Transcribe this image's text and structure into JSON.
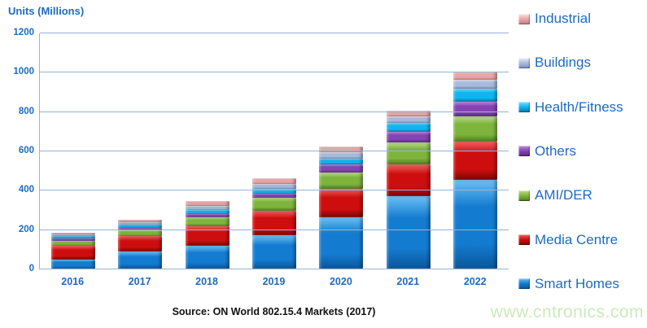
{
  "page": {
    "title": "Units (Millions)",
    "source_note": "Source: ON World 802.15.4 Markets (2017)",
    "watermark": "www.cntronics.com"
  },
  "colors": {
    "axis_text": "#1E6BC0",
    "grid_line": "#95B3D7",
    "legend_text": "#1E6BC0",
    "source_text": "#111111",
    "watermark_text": "#CCE9BC"
  },
  "chart_data": {
    "type": "bar",
    "stacked": true,
    "title": "Units (Millions)",
    "ylabel": "Units (Millions)",
    "xlabel": "",
    "ylim": [
      0,
      1200
    ],
    "yticks": [
      0,
      200,
      400,
      600,
      800,
      1000,
      1200
    ],
    "grid": true,
    "legend_position": "right",
    "legend_order_top_to_bottom": [
      "Industrial",
      "Buildings",
      "Health/Fitness",
      "Others",
      "AMI/DER",
      "Media Centre",
      "Smart Homes"
    ],
    "categories": [
      "2016",
      "2017",
      "2018",
      "2019",
      "2020",
      "2021",
      "2022"
    ],
    "series": [
      {
        "name": "Smart Homes",
        "color": "#147CD0",
        "color_light": "#6CC0F4",
        "color_dark": "#0A569A",
        "values": [
          45,
          85,
          115,
          170,
          260,
          370,
          450
        ]
      },
      {
        "name": "Media Centre",
        "color": "#CE0E0E",
        "color_light": "#F06060",
        "color_dark": "#7E0404",
        "values": [
          70,
          80,
          100,
          125,
          145,
          160,
          195
        ]
      },
      {
        "name": "AMI/DER",
        "color": "#7EB43C",
        "color_light": "#BCDC8A",
        "color_dark": "#4E7C1E",
        "values": [
          25,
          30,
          45,
          65,
          85,
          110,
          130
        ]
      },
      {
        "name": "Others",
        "color": "#8544B6",
        "color_light": "#BC88E0",
        "color_dark": "#542878",
        "values": [
          12,
          12,
          18,
          20,
          40,
          55,
          75
        ]
      },
      {
        "name": "Health/Fitness",
        "color": "#0EB6F0",
        "color_light": "#80E0FA",
        "color_dark": "#0778A8",
        "values": [
          12,
          15,
          20,
          25,
          30,
          45,
          65
        ]
      },
      {
        "name": "Buildings",
        "color": "#A8BADC",
        "color_light": "#EAF0FA",
        "color_dark": "#7890BE",
        "values": [
          10,
          15,
          20,
          25,
          30,
          35,
          45
        ]
      },
      {
        "name": "Industrial",
        "color": "#E8A6A6",
        "color_light": "#FAE2E2",
        "color_dark": "#C47C7C",
        "values": [
          8,
          10,
          25,
          30,
          30,
          30,
          40
        ]
      }
    ]
  }
}
